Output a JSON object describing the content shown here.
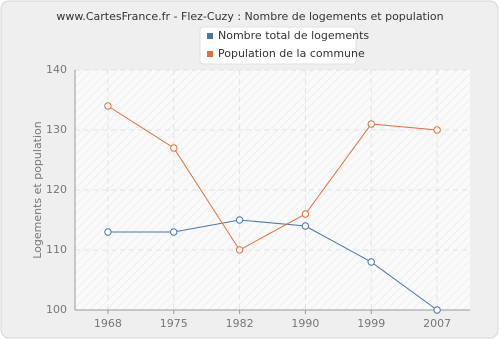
{
  "chart_data": {
    "type": "line",
    "title": "www.CartesFrance.fr - Flez-Cuzy : Nombre de logements et population",
    "y_label": "Logements et population",
    "categories": [
      "1968",
      "1975",
      "1982",
      "1990",
      "1999",
      "2007"
    ],
    "series": [
      {
        "name": "Nombre total de logements",
        "color": "#4a76a8",
        "values": [
          113,
          113,
          115,
          114,
          108,
          100
        ]
      },
      {
        "name": "Population de la commune",
        "color": "#e0703e",
        "values": [
          134,
          127,
          110,
          116,
          131,
          130
        ]
      }
    ],
    "ylim": [
      100,
      140
    ],
    "yticks": [
      100,
      110,
      120,
      130,
      140
    ],
    "grid": true
  }
}
